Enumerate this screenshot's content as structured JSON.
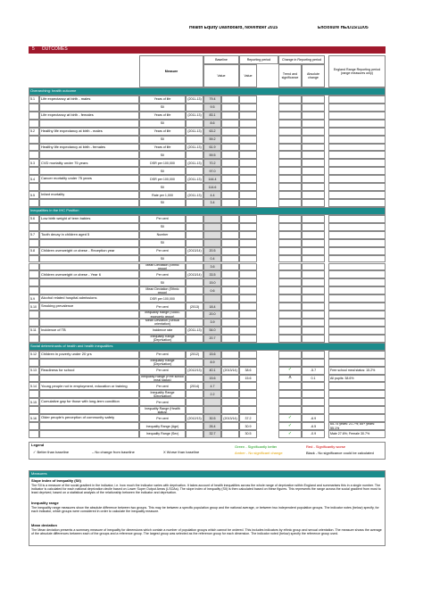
{
  "header": {
    "title": "Health Equity Dashboard, November 2015",
    "reference": "Enclosure HE/D15/11/05"
  },
  "section": {
    "number": "5",
    "title": "OUTCOMES"
  },
  "table": {
    "headers": {
      "measure": "Measure",
      "baseline": "Baseline",
      "baseline_value": "Value",
      "reporting": "Reporting period",
      "reporting_value": "Value",
      "change": "Change in Reporting period",
      "trend": "Trend and significance",
      "absolute": "Absolute change",
      "range": "England Range Reporting period (range measures only)"
    },
    "rows": [
      {
        "group": "Overarching: health outcome"
      },
      {
        "num": "5.1",
        "measure": "Life expectancy at birth - males",
        "unit": "Years of life",
        "period": "(2011-13)",
        "baseline": "79.4"
      },
      {
        "unit": "SII",
        "baseline": "9.5"
      },
      {
        "measure": "Life expectancy at birth - females",
        "unit": "Years of life",
        "period": "(2011-13)",
        "baseline": "83.1"
      },
      {
        "unit": "SII",
        "baseline": "8.6"
      },
      {
        "num": "5.2",
        "measure": "Healthy life expectancy at birth - males",
        "unit": "Years of life",
        "period": "(2011-13)",
        "baseline": "63.2"
      },
      {
        "unit": "SII",
        "baseline": "59.2"
      },
      {
        "measure": "Healthy life expectancy at birth - females",
        "unit": "Years of life",
        "period": "(2011-13)",
        "baseline": "61.9"
      },
      {
        "unit": "SII",
        "baseline": "59.5"
      },
      {
        "num": "5.3",
        "measure": "CVD mortality under 75 years",
        "unit": "DSR per 100,000",
        "period": "(2011-13)",
        "baseline": "70.2"
      },
      {
        "unit": "SII",
        "baseline": "97.0"
      },
      {
        "num": "5.4",
        "measure": "Cancer mortality under 75 years",
        "unit": "DSR per 100,000",
        "period": "(2011-13)",
        "baseline": "144.4"
      },
      {
        "unit": "SII",
        "baseline": "114.6"
      },
      {
        "num": "5.5",
        "measure": "Infant mortality",
        "unit": "Rate per 1,000",
        "period": "(2011-13)",
        "baseline": "4.4"
      },
      {
        "unit": "SII",
        "baseline": "3.4"
      },
      {
        "group": "Inequalities in the IHC Position"
      },
      {
        "num": "5.6",
        "measure": "Low birth weight of term babies",
        "unit": "Per cent"
      },
      {
        "unit": "SII"
      },
      {
        "num": "5.7",
        "measure": "Tooth decay in children aged 5",
        "unit": "Number"
      },
      {
        "unit": "SII"
      },
      {
        "num": "5.8",
        "measure": "Children overweight or obese - Reception year",
        "unit": "Per cent",
        "period": "(2013/14)",
        "baseline": "20.5"
      },
      {
        "unit": "SII",
        "baseline": "0.4"
      },
      {
        "unit": "Mean Deviation (Ethnic group)",
        "baseline": "3.6"
      },
      {
        "measure": "Children overweight or obese - Year 6",
        "unit": "Per cent",
        "period": "(2013/14)",
        "baseline": "33.5"
      },
      {
        "unit": "SII",
        "baseline": "15.0"
      },
      {
        "unit": "Mean Deviation (Ethnic group)",
        "baseline": "0.6"
      },
      {
        "num": "5.9",
        "measure": "Alcohol related hospital admissions",
        "unit": "DSR per 100,000"
      },
      {
        "num": "5.10",
        "measure": "Smoking prevalence",
        "unit": "Per cent",
        "period": "(2013)",
        "baseline": "18.4"
      },
      {
        "unit": "Inequality Range (Socio-economic group)",
        "baseline": "20.0"
      },
      {
        "unit": "Mean Deviation (Sexual orientation)",
        "baseline": "3.9"
      },
      {
        "num": "5.11",
        "measure": "Incidence of TB",
        "unit": "Incidence rate",
        "period": "(2011-13)",
        "baseline": "54.0"
      },
      {
        "unit": "Inequality Range (Deprivation)",
        "baseline": "20.7"
      },
      {
        "group": "Social determinants of health and health inequalities"
      },
      {
        "num": "5.12",
        "measure": "Children in poverty under 20 yrs",
        "unit": "Per cent",
        "period": "(2012)",
        "baseline": "15.6"
      },
      {
        "unit": "Inequality Range (Deprivation)",
        "baseline": "8.9"
      },
      {
        "num": "5.13",
        "measure": "Readiness for school",
        "unit": "Per cent",
        "period": "(2012/13)",
        "baseline": "40.1",
        "reporting": "38.6",
        "rperiod": "(2013/14)",
        "trend": "✓",
        "change": "-5.7",
        "range": "Free school meal status: 15.2%"
      },
      {
        "unit": "Inequality Range (Free school meal status)",
        "baseline": "15.6",
        "reporting": "15.6",
        "trend": "X",
        "change": "0.1",
        "range": "All pupils: 38.6%"
      },
      {
        "num": "5.14",
        "measure": "Young people not in employment, education or training",
        "unit": "Per cent",
        "period": "(2014)",
        "baseline": "4.7"
      },
      {
        "unit": "Inequality Range (Deprivation)",
        "baseline": "2.2"
      },
      {
        "num": "5.15",
        "measure": "Cumulative gap for those with long-term condition",
        "unit": "Per cent"
      },
      {
        "unit": "Inequality Range (Health status)"
      },
      {
        "num": "5.16",
        "measure": "Older people's perception of community safety",
        "unit": "Per cent",
        "period": "(2012/13)",
        "baseline": "30.5",
        "reporting": "37.2",
        "rperiod": "(2013/14)",
        "trend": "✓",
        "change": "-6.9"
      },
      {
        "unit": "Inequality Range (Age)",
        "baseline": "26.4",
        "reporting": "30.9",
        "trend": "✓",
        "change": "-6.5",
        "range": "65-74 years: 21.7%; 85+ years: 55.1%"
      },
      {
        "unit": "Inequality Range (Sex)",
        "baseline": "32.7",
        "reporting": "30.5",
        "trend": "✓",
        "change": "-0.9",
        "range": "Male 27.6%; Female 30.7%"
      }
    ]
  },
  "legend": {
    "title": "Legend",
    "items": [
      "✓  Better than baseline",
      "–  No change from baseline",
      "X  Worse than baseline",
      "Green - Significantly better",
      "Amber - No significant change",
      "Red - Significantly worse",
      "Black - No significance could be calculated"
    ]
  },
  "measures": {
    "title": "Measures",
    "items": [
      {
        "heading": "Slope index of inequality (SII)",
        "text": "The SII is a measure of the social gradient in the indicator, i.e. how much the indicator varies with deprivation. It takes account of health inequalities across the whole range of deprivation within England and summarises this in a single number. The indicator is calculated for each national deprivation decile based on Lower Super Output Areas (LSOAs). The slope index of inequality (SII) is then calculated based on these figures. This represents the range across the social gradient from most to least deprived, based on a statistical analysis of the relationship between the indicator and deprivation."
      },
      {
        "heading": "Inequality range",
        "text": "The inequality range measures show the absolute difference between two groups. This may be between a specific population group and the national average, or between two independent population groups. The indicator notes (below) specify, for each indicator, which groups were considered in order to calculate the inequality measure."
      },
      {
        "heading": "Mean deviation",
        "text": "The Mean deviation presents a summary measure of inequality for dimensions which contain a number of population groups which cannot be ordered. This includes indicators by ethnic group and sexual orientation. The measure shows the average of the absolute differences between each of the groups and a reference group. The largest group was selected as the reference group for each dimension. The indicator noted (below) specify the reference group used."
      }
    ]
  }
}
